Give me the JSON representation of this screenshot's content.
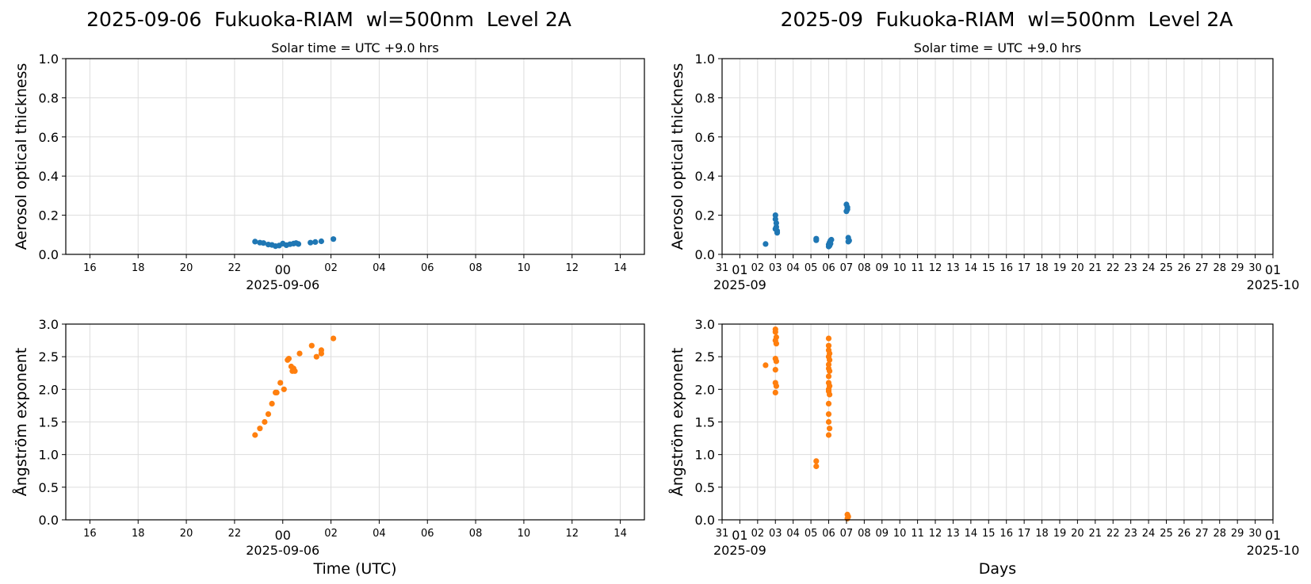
{
  "figure": {
    "left_title": "2025-09-06  Fukuoka-RIAM  wl=500nm  Level 2A",
    "right_title": "2025-09  Fukuoka-RIAM  wl=500nm  Level 2A"
  },
  "colors": {
    "aod": "#1f77b4",
    "angstrom": "#ff7f0e",
    "grid": "#dddddd"
  },
  "chart_data": [
    {
      "id": "daily-aod",
      "type": "scatter",
      "subtitle": "Solar time = UTC +9.0 hrs",
      "xlabel": "",
      "ylabel": "Aerosol optical thickness",
      "xlim": [
        -9,
        15
      ],
      "ylim": [
        0,
        1.0
      ],
      "yticks": [
        0,
        0.2,
        0.4,
        0.6,
        0.8,
        1.0
      ],
      "ytick_labels": [
        "0.0",
        "0.2",
        "0.4",
        "0.6",
        "0.8",
        "1.0"
      ],
      "xtick_hours": [
        -8,
        -6,
        -4,
        -2,
        0,
        2,
        4,
        6,
        8,
        10,
        12,
        14
      ],
      "xtick_labels": [
        "16",
        "18",
        "20",
        "22",
        "00",
        "02",
        "04",
        "06",
        "08",
        "10",
        "12",
        "14"
      ],
      "xdate_label": "2025-09-06",
      "grid": true,
      "color": "#1f77b4",
      "x_unit": "hours relative to 2025-09-06 00:00 UTC",
      "points": [
        [
          -1.15,
          0.065
        ],
        [
          -0.95,
          0.06
        ],
        [
          -0.8,
          0.058
        ],
        [
          -0.6,
          0.05
        ],
        [
          -0.45,
          0.048
        ],
        [
          -0.3,
          0.042
        ],
        [
          -0.15,
          0.045
        ],
        [
          0.0,
          0.055
        ],
        [
          0.15,
          0.047
        ],
        [
          0.3,
          0.052
        ],
        [
          0.45,
          0.055
        ],
        [
          0.55,
          0.058
        ],
        [
          0.65,
          0.053
        ],
        [
          1.15,
          0.06
        ],
        [
          1.35,
          0.063
        ],
        [
          1.6,
          0.067
        ],
        [
          2.1,
          0.078
        ]
      ]
    },
    {
      "id": "monthly-aod",
      "type": "scatter",
      "subtitle": "Solar time = UTC +9.0 hrs",
      "xlabel": "",
      "ylabel": "Aerosol optical thickness",
      "xlim": [
        0,
        31
      ],
      "ylim": [
        0,
        1.0
      ],
      "yticks": [
        0,
        0.2,
        0.4,
        0.6,
        0.8,
        1.0
      ],
      "ytick_labels": [
        "0.0",
        "0.2",
        "0.4",
        "0.6",
        "0.8",
        "1.0"
      ],
      "xticks": [
        -0.0,
        1,
        2,
        3,
        4,
        5,
        6,
        7,
        8,
        9,
        10,
        11,
        12,
        13,
        14,
        15,
        16,
        17,
        18,
        19,
        20,
        21,
        22,
        23,
        24,
        25,
        26,
        27,
        28,
        29,
        30,
        31
      ],
      "xtick_labels": [
        "31",
        "01",
        "02",
        "03",
        "04",
        "05",
        "06",
        "07",
        "08",
        "09",
        "10",
        "11",
        "12",
        "13",
        "14",
        "15",
        "16",
        "17",
        "18",
        "19",
        "20",
        "21",
        "22",
        "23",
        "24",
        "25",
        "26",
        "27",
        "28",
        "29",
        "30",
        "01"
      ],
      "xdate_left": "2025-09",
      "xdate_right": "2025-10",
      "grid": true,
      "color": "#1f77b4",
      "x_unit": "days since 2025-08-31",
      "points": [
        [
          2.45,
          0.053
        ],
        [
          3.0,
          0.2
        ],
        [
          3.0,
          0.18
        ],
        [
          3.05,
          0.16
        ],
        [
          3.05,
          0.14
        ],
        [
          3.1,
          0.12
        ],
        [
          3.1,
          0.11
        ],
        [
          3.0,
          0.13
        ],
        [
          5.3,
          0.08
        ],
        [
          5.3,
          0.072
        ],
        [
          6.0,
          0.04
        ],
        [
          6.0,
          0.05
        ],
        [
          6.05,
          0.06
        ],
        [
          6.1,
          0.07
        ],
        [
          6.05,
          0.045
        ],
        [
          6.1,
          0.055
        ],
        [
          6.15,
          0.075
        ],
        [
          7.0,
          0.255
        ],
        [
          7.05,
          0.24
        ],
        [
          7.05,
          0.23
        ],
        [
          7.0,
          0.22
        ],
        [
          7.1,
          0.085
        ],
        [
          7.15,
          0.07
        ],
        [
          7.1,
          0.065
        ]
      ]
    },
    {
      "id": "daily-angstrom",
      "type": "scatter",
      "xlabel": "Time (UTC)",
      "ylabel": "Ångström exponent",
      "xlim": [
        -9,
        15
      ],
      "ylim": [
        0,
        3.0
      ],
      "yticks": [
        0,
        0.5,
        1.0,
        1.5,
        2.0,
        2.5,
        3.0
      ],
      "ytick_labels": [
        "0.0",
        "0.5",
        "1.0",
        "1.5",
        "2.0",
        "2.5",
        "3.0"
      ],
      "xtick_hours": [
        -8,
        -6,
        -4,
        -2,
        0,
        2,
        4,
        6,
        8,
        10,
        12,
        14
      ],
      "xtick_labels": [
        "16",
        "18",
        "20",
        "22",
        "00",
        "02",
        "04",
        "06",
        "08",
        "10",
        "12",
        "14"
      ],
      "xdate_label": "2025-09-06",
      "grid": true,
      "color": "#ff7f0e",
      "x_unit": "hours relative to 2025-09-06 00:00 UTC",
      "points": [
        [
          -1.15,
          1.3
        ],
        [
          -0.95,
          1.4
        ],
        [
          -0.75,
          1.5
        ],
        [
          -0.6,
          1.62
        ],
        [
          -0.45,
          1.78
        ],
        [
          -0.3,
          1.95
        ],
        [
          -0.25,
          1.95
        ],
        [
          -0.1,
          2.1
        ],
        [
          0.05,
          2.0
        ],
        [
          0.2,
          2.45
        ],
        [
          0.25,
          2.47
        ],
        [
          0.35,
          2.35
        ],
        [
          0.4,
          2.28
        ],
        [
          0.45,
          2.32
        ],
        [
          0.5,
          2.28
        ],
        [
          0.7,
          2.55
        ],
        [
          1.2,
          2.67
        ],
        [
          1.4,
          2.5
        ],
        [
          1.6,
          2.6
        ],
        [
          1.6,
          2.55
        ],
        [
          2.1,
          2.78
        ]
      ]
    },
    {
      "id": "monthly-angstrom",
      "type": "scatter",
      "xlabel": "Days",
      "ylabel": "Ångström exponent",
      "xlim": [
        0,
        31
      ],
      "ylim": [
        0,
        3.0
      ],
      "yticks": [
        0,
        0.5,
        1.0,
        1.5,
        2.0,
        2.5,
        3.0
      ],
      "ytick_labels": [
        "0.0",
        "0.5",
        "1.0",
        "1.5",
        "2.0",
        "2.5",
        "3.0"
      ],
      "xticks": [
        -0.0,
        1,
        2,
        3,
        4,
        5,
        6,
        7,
        8,
        9,
        10,
        11,
        12,
        13,
        14,
        15,
        16,
        17,
        18,
        19,
        20,
        21,
        22,
        23,
        24,
        25,
        26,
        27,
        28,
        29,
        30,
        31
      ],
      "xtick_labels": [
        "31",
        "01",
        "02",
        "03",
        "04",
        "05",
        "06",
        "07",
        "08",
        "09",
        "10",
        "11",
        "12",
        "13",
        "14",
        "15",
        "16",
        "17",
        "18",
        "19",
        "20",
        "21",
        "22",
        "23",
        "24",
        "25",
        "26",
        "27",
        "28",
        "29",
        "30",
        "01"
      ],
      "xdate_left": "2025-09",
      "xdate_right": "2025-10",
      "grid": true,
      "color": "#ff7f0e",
      "x_unit": "days since 2025-08-31",
      "points": [
        [
          2.45,
          2.37
        ],
        [
          3.0,
          2.92
        ],
        [
          3.0,
          2.88
        ],
        [
          3.05,
          2.8
        ],
        [
          3.0,
          2.75
        ],
        [
          3.05,
          2.7
        ],
        [
          3.0,
          2.47
        ],
        [
          3.05,
          2.43
        ],
        [
          3.0,
          2.3
        ],
        [
          3.0,
          2.1
        ],
        [
          3.05,
          2.05
        ],
        [
          3.0,
          1.95
        ],
        [
          5.3,
          0.9
        ],
        [
          5.3,
          0.82
        ],
        [
          6.0,
          2.78
        ],
        [
          6.0,
          2.67
        ],
        [
          6.0,
          2.6
        ],
        [
          6.05,
          2.55
        ],
        [
          6.0,
          2.5
        ],
        [
          6.05,
          2.45
        ],
        [
          6.0,
          2.38
        ],
        [
          6.0,
          2.32
        ],
        [
          6.05,
          2.28
        ],
        [
          6.0,
          2.2
        ],
        [
          6.0,
          2.1
        ],
        [
          6.05,
          2.05
        ],
        [
          6.0,
          2.0
        ],
        [
          6.0,
          1.97
        ],
        [
          6.05,
          1.92
        ],
        [
          6.0,
          1.78
        ],
        [
          6.0,
          1.62
        ],
        [
          6.0,
          1.5
        ],
        [
          6.05,
          1.4
        ],
        [
          6.0,
          1.3
        ],
        [
          7.05,
          0.08
        ],
        [
          7.1,
          0.05
        ],
        [
          7.05,
          0.02
        ]
      ]
    }
  ]
}
